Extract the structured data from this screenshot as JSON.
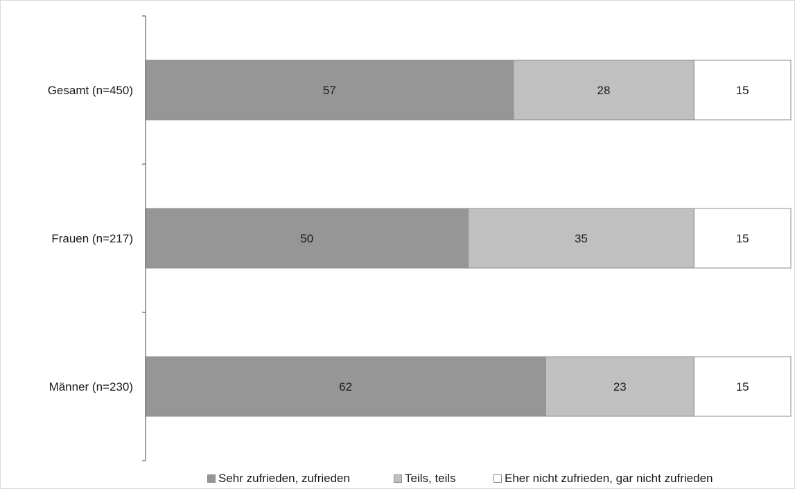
{
  "colors": {
    "sehr_zufrieden": "#969696",
    "teils": "#c0c0c0",
    "eher_nicht": "#ffffff",
    "bar_border": "#8c8c8c",
    "axis": "#404040"
  },
  "legend": {
    "item1": "Sehr zufrieden, zufrieden",
    "item2": "Teils, teils",
    "item3": "Eher nicht zufrieden, gar nicht zufrieden"
  },
  "chart_data": {
    "type": "bar",
    "orientation": "horizontal",
    "stacked": true,
    "categories": [
      "Gesamt (n=450)",
      "Frauen (n=217)",
      "Männer (n=230)"
    ],
    "series": [
      {
        "name": "Sehr zufrieden, zufrieden",
        "values": [
          57,
          50,
          62
        ]
      },
      {
        "name": "Teils, teils",
        "values": [
          28,
          35,
          23
        ]
      },
      {
        "name": "Eher nicht zufrieden, gar nicht zufrieden",
        "values": [
          15,
          15,
          15
        ]
      }
    ],
    "xlim": [
      0,
      100
    ],
    "grid": false,
    "legend_position": "bottom",
    "data_labels": true
  }
}
